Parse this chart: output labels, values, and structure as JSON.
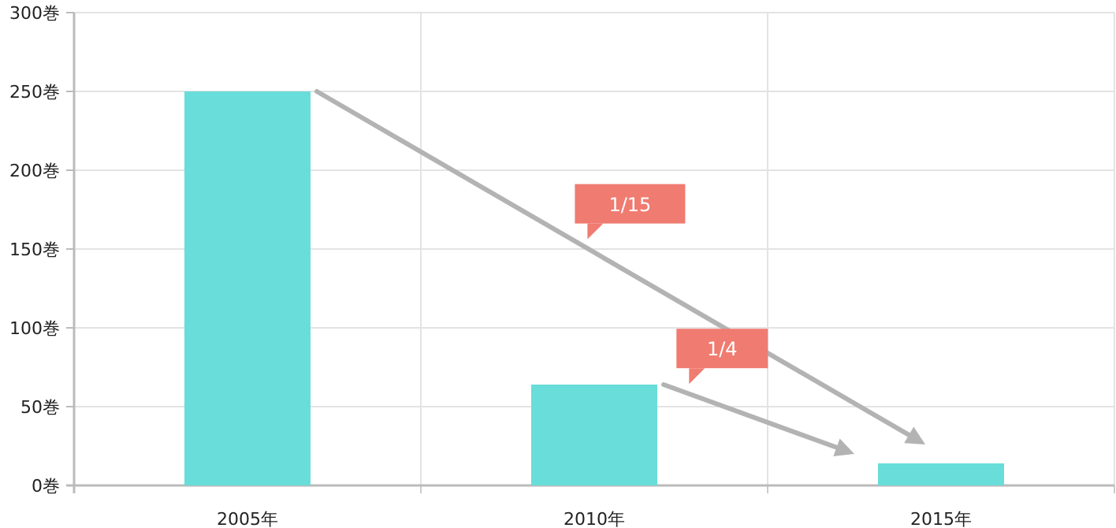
{
  "chart_data": {
    "type": "bar",
    "categories": [
      "2005年",
      "2010年",
      "2015年"
    ],
    "values": [
      250,
      64,
      14
    ],
    "color": "#68ddd9",
    "ylim": [
      0,
      300
    ],
    "yticks": [
      {
        "value": 0,
        "label": "0巻"
      },
      {
        "value": 50,
        "label": "50巻"
      },
      {
        "value": 100,
        "label": "100巻"
      },
      {
        "value": 150,
        "label": "150巻"
      },
      {
        "value": 200,
        "label": "200巻"
      },
      {
        "value": 250,
        "label": "250巻"
      },
      {
        "value": 300,
        "label": "300巻"
      }
    ],
    "grid": true,
    "annotations": [
      "1/15",
      "1/4"
    ]
  }
}
